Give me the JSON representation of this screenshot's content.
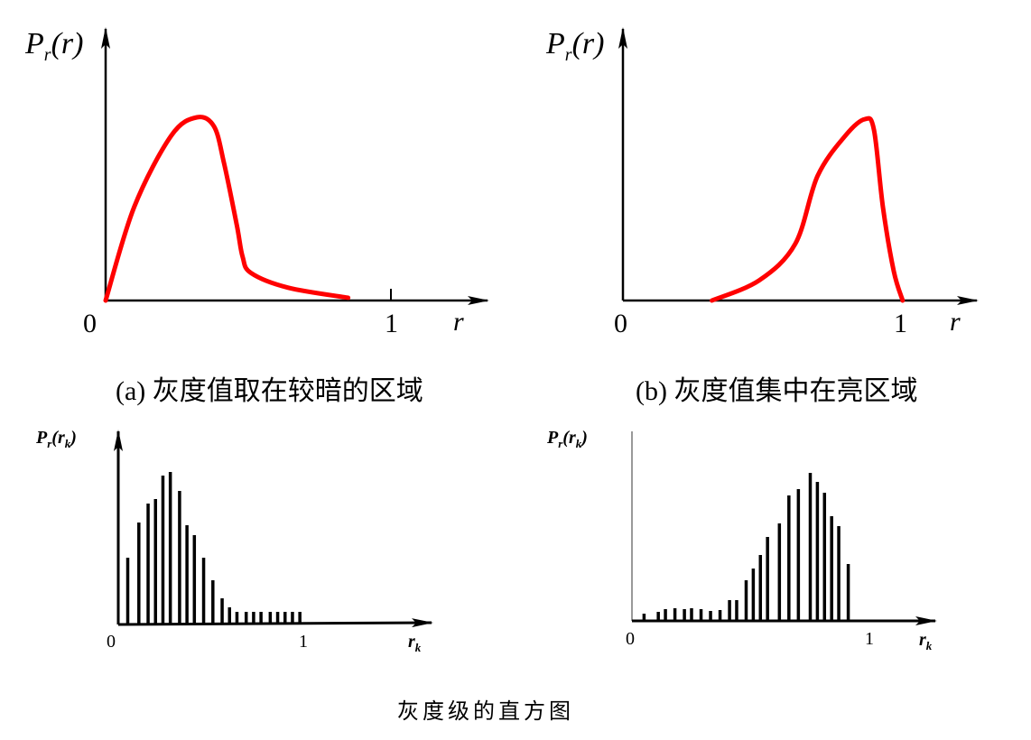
{
  "chart_data": [
    {
      "type": "line",
      "id": "a",
      "ylabel": "P_r(r)",
      "xlabel": "r",
      "x_ticks": [
        "0",
        "1"
      ],
      "caption": "(a) 灰度值取在较暗的区域",
      "color": "#ff0000",
      "points": [
        [
          0,
          0
        ],
        [
          0.1,
          0.51
        ],
        [
          0.23,
          0.9
        ],
        [
          0.32,
          1.0
        ],
        [
          0.38,
          0.95
        ],
        [
          0.415,
          0.75
        ],
        [
          0.46,
          0.41
        ],
        [
          0.48,
          0.24
        ],
        [
          0.51,
          0.15
        ],
        [
          0.64,
          0.07
        ],
        [
          0.85,
          0.015
        ]
      ]
    },
    {
      "type": "line",
      "id": "b",
      "ylabel": "P_r(r)",
      "xlabel": "r",
      "x_ticks": [
        "0",
        "1"
      ],
      "caption": "(b) 灰度值集中在亮区域",
      "color": "#ff0000",
      "points": [
        [
          0.32,
          0
        ],
        [
          0.49,
          0.11
        ],
        [
          0.62,
          0.31
        ],
        [
          0.7,
          0.68
        ],
        [
          0.8,
          0.9
        ],
        [
          0.87,
          0.99
        ],
        [
          0.903,
          0.93
        ],
        [
          0.935,
          0.51
        ],
        [
          0.974,
          0.16
        ],
        [
          1.006,
          0
        ]
      ]
    },
    {
      "type": "bar",
      "id": "c",
      "ylabel": "P_r(r_k)",
      "xlabel": "r_k",
      "x_ticks": [
        "0",
        "1"
      ],
      "x": [
        0.05,
        0.11,
        0.16,
        0.2,
        0.24,
        0.28,
        0.33,
        0.37,
        0.41,
        0.46,
        0.51,
        0.56,
        0.6,
        0.64,
        0.69,
        0.73,
        0.77,
        0.82,
        0.86,
        0.9,
        0.94,
        0.98
      ],
      "values": [
        74,
        113,
        134,
        139,
        165,
        169,
        148,
        110,
        99,
        74,
        49,
        29,
        19,
        14,
        14,
        14,
        14,
        14,
        14,
        14,
        14,
        14
      ]
    },
    {
      "type": "bar",
      "id": "d",
      "ylabel": "P_r(r_k)",
      "xlabel": "r_k",
      "x_ticks": [
        "0",
        "1"
      ],
      "x": [
        0.05,
        0.11,
        0.14,
        0.18,
        0.22,
        0.25,
        0.29,
        0.33,
        0.37,
        0.41,
        0.44,
        0.48,
        0.51,
        0.54,
        0.57,
        0.62,
        0.66,
        0.7,
        0.75,
        0.78,
        0.81,
        0.84,
        0.87,
        0.91
      ],
      "values": [
        8,
        10,
        13,
        14,
        13,
        14,
        13,
        11,
        12,
        23,
        23,
        45,
        58,
        73,
        93,
        108,
        139,
        146,
        164,
        154,
        142,
        116,
        105,
        63
      ]
    }
  ],
  "figure_caption": "灰度级的直方图"
}
